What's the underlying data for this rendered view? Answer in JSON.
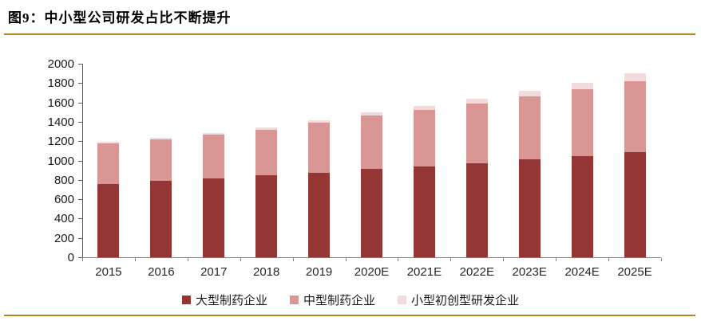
{
  "header": {
    "title": "图9：中小型公司研发占比不断提升",
    "accent_color": "#B4851D"
  },
  "chart_data": {
    "type": "bar",
    "stacked": true,
    "title": "中小型公司研发占比不断提升",
    "categories": [
      "2015",
      "2016",
      "2017",
      "2018",
      "2019",
      "2020E",
      "2021E",
      "2022E",
      "2023E",
      "2024E",
      "2025E"
    ],
    "series": [
      {
        "name": "大型制药企业",
        "key": "large-pharma",
        "color": "#943634",
        "values": [
          760,
          790,
          815,
          850,
          870,
          910,
          940,
          975,
          1015,
          1045,
          1090
        ]
      },
      {
        "name": "中型制药企业",
        "key": "mid-pharma",
        "color": "#D99694",
        "values": [
          420,
          430,
          455,
          470,
          520,
          555,
          580,
          615,
          650,
          695,
          725
        ]
      },
      {
        "name": "小型初创型研发企业",
        "key": "small-startup",
        "color": "#F2DCDB",
        "values": [
          10,
          15,
          15,
          20,
          25,
          30,
          40,
          50,
          55,
          60,
          85
        ]
      }
    ],
    "ylim": [
      0,
      2000
    ],
    "yticks": [
      0,
      200,
      400,
      600,
      800,
      1000,
      1200,
      1400,
      1600,
      1800,
      2000
    ],
    "grid": false,
    "legend_position": "bottom",
    "axis_color": "#595959",
    "label_color": "#262626"
  }
}
